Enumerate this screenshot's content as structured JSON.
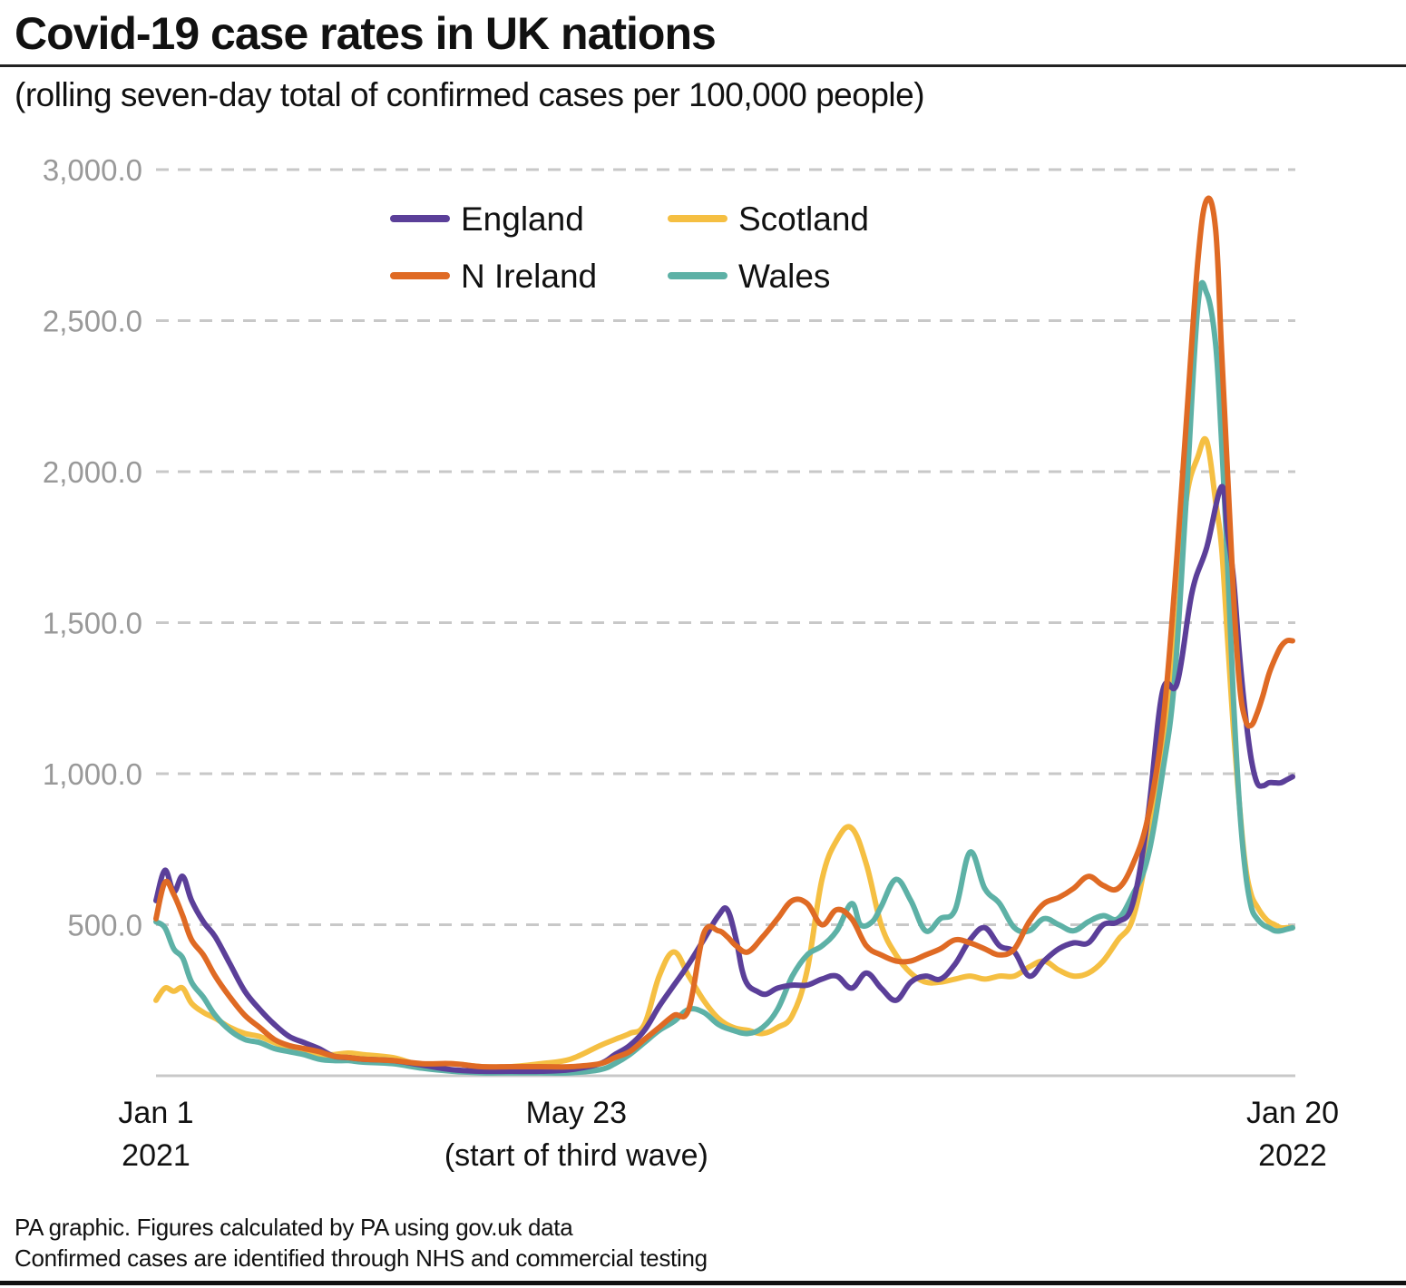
{
  "title": "Covid-19 case rates in UK nations",
  "subtitle": "(rolling seven-day total of confirmed cases per 100,000 people)",
  "footer": {
    "line1": "PA graphic. Figures calculated by PA using gov.uk data",
    "line2": "Confirmed cases are identified through NHS and commercial testing"
  },
  "chart_data": {
    "type": "line",
    "title": "Covid-19 case rates in UK nations",
    "subtitle": "(rolling seven-day total of confirmed cases per 100,000 people)",
    "xlabel": "",
    "ylabel": "",
    "x_unit": "days since Jan 1 2021",
    "xlim": [
      0,
      384
    ],
    "ylim": [
      0,
      3000
    ],
    "grid": true,
    "legend_position": "top-center",
    "y_ticks": [
      {
        "value": 500,
        "label": "500.0"
      },
      {
        "value": 1000,
        "label": "1,000.0"
      },
      {
        "value": 1500,
        "label": "1,500.0"
      },
      {
        "value": 2000,
        "label": "2,000.0"
      },
      {
        "value": 2500,
        "label": "2,500.0"
      },
      {
        "value": 3000,
        "label": "3,000.0"
      }
    ],
    "x_ticks": [
      {
        "value": 0,
        "line1": "Jan 1",
        "line2": "2021"
      },
      {
        "value": 142,
        "line1": "May 23",
        "line2": "(start of third wave)"
      },
      {
        "value": 384,
        "line1": "Jan 20",
        "line2": "2022"
      }
    ],
    "series": [
      {
        "name": "England",
        "color": "#5B3F99",
        "x": [
          0,
          3,
          6,
          9,
          12,
          16,
          20,
          25,
          30,
          35,
          40,
          45,
          50,
          55,
          60,
          65,
          70,
          80,
          90,
          100,
          110,
          120,
          130,
          140,
          150,
          155,
          160,
          165,
          170,
          175,
          180,
          185,
          190,
          193,
          196,
          198,
          200,
          203,
          206,
          210,
          215,
          220,
          225,
          230,
          235,
          240,
          245,
          250,
          255,
          260,
          265,
          270,
          275,
          280,
          285,
          290,
          295,
          300,
          305,
          310,
          315,
          320,
          325,
          330,
          335,
          340,
          345,
          350,
          355,
          360,
          362,
          364,
          366,
          368,
          370,
          372,
          374,
          376,
          378,
          380,
          382,
          384
        ],
        "y": [
          580,
          680,
          610,
          660,
          580,
          510,
          460,
          370,
          280,
          220,
          170,
          130,
          110,
          90,
          65,
          60,
          55,
          50,
          35,
          20,
          15,
          15,
          15,
          20,
          40,
          70,
          100,
          150,
          230,
          300,
          370,
          450,
          530,
          550,
          450,
          350,
          300,
          280,
          270,
          290,
          300,
          300,
          320,
          330,
          290,
          340,
          290,
          250,
          310,
          330,
          320,
          370,
          450,
          490,
          430,
          410,
          330,
          380,
          420,
          440,
          440,
          500,
          510,
          570,
          850,
          1270,
          1300,
          1600,
          1750,
          1950,
          1800,
          1650,
          1400,
          1200,
          1050,
          970,
          960,
          970,
          970,
          970,
          980,
          990
        ]
      },
      {
        "name": "Scotland",
        "color": "#F5BF42",
        "x": [
          0,
          3,
          6,
          9,
          12,
          16,
          20,
          25,
          30,
          35,
          40,
          45,
          50,
          55,
          60,
          65,
          70,
          80,
          90,
          100,
          110,
          120,
          130,
          140,
          150,
          155,
          160,
          165,
          170,
          175,
          180,
          185,
          190,
          195,
          200,
          205,
          210,
          215,
          220,
          225,
          230,
          235,
          240,
          245,
          250,
          255,
          260,
          265,
          270,
          275,
          280,
          285,
          290,
          295,
          300,
          305,
          310,
          315,
          320,
          325,
          330,
          335,
          340,
          345,
          348,
          352,
          355,
          358,
          360,
          362,
          364,
          366,
          368,
          370,
          372,
          374,
          376,
          378,
          380,
          382,
          384
        ],
        "y": [
          250,
          290,
          280,
          290,
          240,
          210,
          190,
          160,
          140,
          130,
          110,
          90,
          80,
          70,
          70,
          75,
          70,
          60,
          35,
          40,
          30,
          30,
          40,
          55,
          100,
          120,
          140,
          170,
          330,
          410,
          330,
          250,
          190,
          160,
          150,
          140,
          160,
          200,
          350,
          650,
          780,
          820,
          700,
          500,
          400,
          340,
          310,
          310,
          320,
          330,
          320,
          330,
          330,
          360,
          380,
          350,
          330,
          340,
          380,
          450,
          520,
          750,
          1080,
          1500,
          1900,
          2050,
          2100,
          1900,
          1750,
          1450,
          1150,
          900,
          700,
          600,
          560,
          530,
          510,
          500,
          490,
          490,
          490
        ]
      },
      {
        "name": "N Ireland",
        "color": "#DF6A24",
        "x": [
          0,
          3,
          6,
          9,
          12,
          16,
          20,
          25,
          30,
          35,
          40,
          45,
          50,
          55,
          60,
          65,
          70,
          80,
          90,
          100,
          110,
          120,
          130,
          140,
          150,
          155,
          160,
          165,
          170,
          175,
          180,
          185,
          190,
          193,
          196,
          200,
          205,
          210,
          215,
          220,
          225,
          230,
          235,
          240,
          245,
          250,
          255,
          260,
          265,
          270,
          275,
          280,
          285,
          290,
          295,
          300,
          305,
          310,
          315,
          320,
          325,
          330,
          335,
          340,
          344,
          348,
          352,
          355,
          358,
          360,
          362,
          364,
          366,
          368,
          370,
          372,
          374,
          376,
          378,
          380,
          382,
          384
        ],
        "y": [
          520,
          640,
          600,
          530,
          450,
          400,
          330,
          260,
          200,
          160,
          120,
          100,
          90,
          80,
          65,
          60,
          55,
          50,
          40,
          40,
          30,
          30,
          30,
          30,
          40,
          60,
          80,
          120,
          160,
          200,
          220,
          470,
          480,
          460,
          430,
          410,
          460,
          520,
          580,
          570,
          500,
          550,
          520,
          430,
          400,
          380,
          380,
          400,
          420,
          450,
          440,
          420,
          400,
          420,
          510,
          570,
          590,
          620,
          660,
          630,
          620,
          700,
          850,
          1150,
          1600,
          2150,
          2700,
          2900,
          2800,
          2400,
          2000,
          1600,
          1300,
          1180,
          1160,
          1200,
          1260,
          1330,
          1380,
          1420,
          1440,
          1440
        ]
      },
      {
        "name": "Wales",
        "color": "#5DB1A6",
        "x": [
          0,
          3,
          6,
          9,
          12,
          16,
          20,
          25,
          30,
          35,
          40,
          45,
          50,
          55,
          60,
          65,
          70,
          80,
          90,
          100,
          110,
          120,
          130,
          140,
          150,
          155,
          160,
          165,
          170,
          175,
          180,
          185,
          190,
          195,
          200,
          205,
          210,
          215,
          220,
          225,
          230,
          235,
          238,
          242,
          245,
          250,
          255,
          260,
          265,
          270,
          275,
          280,
          285,
          290,
          295,
          300,
          305,
          310,
          315,
          320,
          325,
          330,
          335,
          340,
          344,
          348,
          352,
          355,
          358,
          360,
          362,
          364,
          366,
          368,
          370,
          372,
          374,
          376,
          378,
          380,
          382,
          384
        ],
        "y": [
          510,
          490,
          420,
          390,
          310,
          260,
          200,
          150,
          120,
          110,
          90,
          80,
          70,
          55,
          50,
          50,
          45,
          40,
          25,
          15,
          10,
          10,
          10,
          10,
          20,
          40,
          70,
          110,
          150,
          180,
          220,
          210,
          170,
          150,
          140,
          160,
          220,
          330,
          400,
          430,
          480,
          570,
          500,
          510,
          560,
          650,
          580,
          480,
          520,
          550,
          740,
          620,
          570,
          490,
          480,
          520,
          500,
          480,
          510,
          530,
          520,
          600,
          720,
          1000,
          1300,
          1900,
          2550,
          2590,
          2420,
          2100,
          1700,
          1250,
          900,
          680,
          560,
          520,
          500,
          490,
          480,
          480,
          485,
          490
        ]
      }
    ]
  }
}
